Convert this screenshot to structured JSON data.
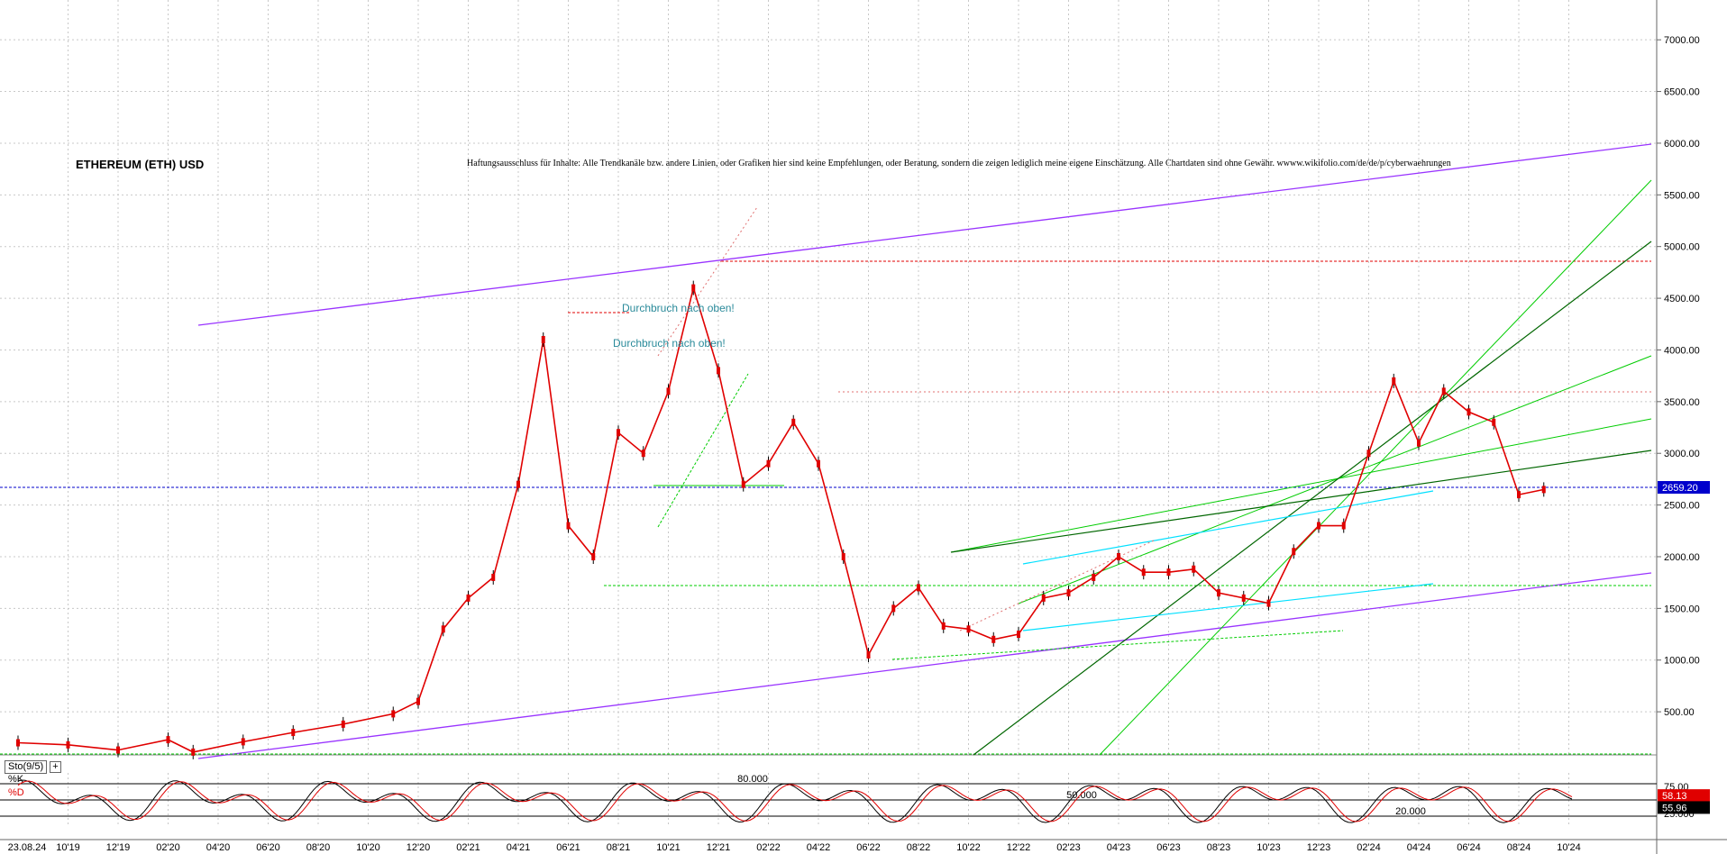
{
  "title": "ETHEREUM (ETH) USD",
  "disclaimer": "Haftungsausschluss für Inhalte: Alle Trendkanäle bzw. andere Linien, oder Grafiken hier sind keine Empfehlungen, oder Beratung, sondern die zeigen lediglich meine eigene Einschätzung. Alle Chartdaten sind ohne Gewähr. wwww.wikifolio.com/de/de/p/cyberwaehrungen",
  "annotations": [
    "Durchbruch nach oben!",
    "Durchbruch nach oben!"
  ],
  "oscillator": {
    "name": "Sto(9/5)",
    "plus": "+",
    "k_label": "%K",
    "d_label": "%D",
    "k_value": "58.13",
    "d_value": "55.96",
    "levels": [
      "80.000",
      "50.000",
      "20.000"
    ],
    "axis_labels": [
      "75.00",
      "25.000"
    ]
  },
  "colors": {
    "price": "#e00000",
    "channel": "#9933ff",
    "current_line": "#0000cc",
    "green": "#00cc00",
    "dark_green": "#006600",
    "cyan": "#00e0ff",
    "stoch_d": "#e00000",
    "value_box_k": "#e00000",
    "value_box_d": "#000000",
    "price_tag": "#0000cc"
  },
  "chart_data": {
    "type": "line",
    "title": "ETHEREUM (ETH) USD",
    "current_price": "2659.20",
    "y_tick_labels": [
      "7000.00",
      "6500.00",
      "6000.00",
      "5500.00",
      "5000.00",
      "4500.00",
      "4000.00",
      "3500.00",
      "3000.00",
      "2500.00",
      "2000.00",
      "1500.00",
      "1000.00",
      "500.00"
    ],
    "x_tick_labels": [
      "23.08.24",
      "10'19",
      "12'19",
      "02'20",
      "04'20",
      "06'20",
      "08'20",
      "10'20",
      "12'20",
      "02'21",
      "04'21",
      "06'21",
      "08'21",
      "10'21",
      "12'21",
      "02'22",
      "04'22",
      "06'22",
      "08'22",
      "10'22",
      "12'22",
      "02'23",
      "04'23",
      "06'23",
      "08'23",
      "10'23",
      "12'23",
      "02'24",
      "04'24",
      "06'24",
      "08'24",
      "10'24"
    ],
    "ylim": [
      0,
      7500
    ],
    "series": [
      {
        "x": [
          "08'19",
          "10'19",
          "12'19",
          "02'20",
          "03'20",
          "05'20",
          "07'20",
          "09'20",
          "11'20",
          "12'20",
          "01'21",
          "02'21",
          "03'21",
          "04'21",
          "05'21",
          "06'21",
          "07'21",
          "08'21",
          "09'21",
          "10'21",
          "11'21",
          "12'21",
          "01'22",
          "02'22",
          "03'22",
          "04'22",
          "05'22",
          "06'22",
          "07'22",
          "08'22",
          "09'22",
          "10'22",
          "11'22",
          "12'22",
          "01'23",
          "02'23",
          "03'23",
          "04'23",
          "05'23",
          "06'23",
          "07'23",
          "08'23",
          "09'23",
          "10'23",
          "11'23",
          "12'23",
          "01'24",
          "02'24",
          "03'24",
          "04'24",
          "05'24",
          "06'24",
          "07'24",
          "08'24",
          "09'24"
        ],
        "y": [
          200,
          180,
          130,
          230,
          110,
          210,
          300,
          380,
          480,
          600,
          1300,
          1600,
          1800,
          2700,
          4100,
          2300,
          2000,
          3200,
          3000,
          3600,
          4600,
          3800,
          2700,
          2900,
          3300,
          2900,
          2000,
          1050,
          1500,
          1700,
          1330,
          1300,
          1200,
          1250,
          1600,
          1650,
          1800,
          2000,
          1850,
          1850,
          1880,
          1650,
          1600,
          1550,
          2050,
          2300,
          2300,
          3000,
          3700,
          3100,
          3600,
          3400,
          3300,
          2600,
          2650
        ]
      }
    ]
  }
}
